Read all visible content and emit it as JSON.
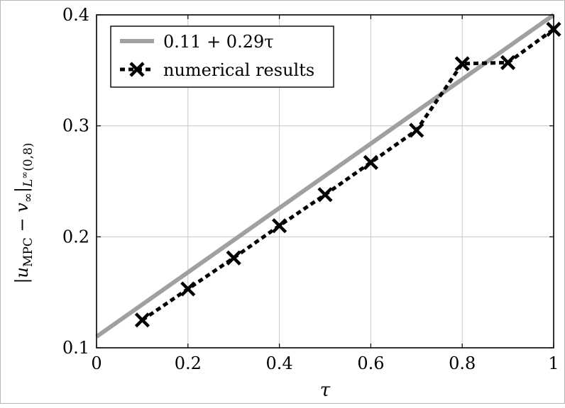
{
  "chart_data": {
    "type": "line",
    "xlabel": "τ",
    "ylabel": "|u_MPC − v_∞|_{L^∞(0,8)}",
    "ylabel_parts": {
      "bar1": "|",
      "u": "u",
      "mpc": "MPC",
      "minus": " − ",
      "v": "v",
      "inf": "∞",
      "bar2": "|",
      "space": "L",
      "sup": "∞",
      "interval": "(0,8)"
    },
    "xlim": [
      0,
      1
    ],
    "ylim": [
      0.1,
      0.4
    ],
    "xticks": [
      0,
      0.2,
      0.4,
      0.6,
      0.8,
      1
    ],
    "xtick_labels": [
      "0",
      "0.2",
      "0.4",
      "0.6",
      "0.8",
      "1"
    ],
    "yticks": [
      0.1,
      0.2,
      0.3,
      0.4
    ],
    "ytick_labels": [
      "0.1",
      "0.2",
      "0.3",
      "0.4"
    ],
    "grid": true,
    "legend_position": "top-left",
    "series": [
      {
        "name": "0.11 + 0.29τ",
        "style": "solid",
        "color": "#a0a0a0",
        "x": [
          0,
          1
        ],
        "y": [
          0.11,
          0.4
        ]
      },
      {
        "name": "numerical results",
        "style": "dashed",
        "marker": "x",
        "color": "#000000",
        "x": [
          0.1,
          0.2,
          0.3,
          0.4,
          0.5,
          0.6,
          0.7,
          0.8,
          0.9,
          1.0
        ],
        "y": [
          0.125,
          0.153,
          0.181,
          0.21,
          0.238,
          0.267,
          0.296,
          0.356,
          0.357,
          0.387
        ]
      }
    ]
  }
}
